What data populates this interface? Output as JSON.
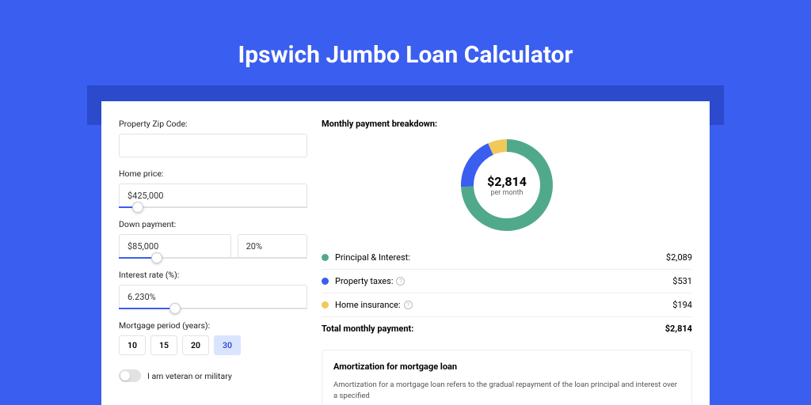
{
  "page": {
    "title": "Ipswich Jumbo Loan Calculator",
    "background_color": "#3a5ef0",
    "darkband_color": "#2b4acc",
    "card_background": "#ffffff"
  },
  "form": {
    "zip": {
      "label": "Property Zip Code:",
      "value": ""
    },
    "home_price": {
      "label": "Home price:",
      "value": "$425,000",
      "slider_pct": 10
    },
    "down_payment": {
      "label": "Down payment:",
      "amount": "$85,000",
      "percent": "20%",
      "slider_pct": 20
    },
    "interest_rate": {
      "label": "Interest rate (%):",
      "value": "6.230%",
      "slider_pct": 30
    },
    "period": {
      "label": "Mortgage period (years):",
      "options": [
        "10",
        "15",
        "20",
        "30"
      ],
      "selected": "30"
    },
    "veteran": {
      "label": "I am veteran or military",
      "checked": false
    }
  },
  "breakdown": {
    "title": "Monthly payment breakdown:",
    "donut": {
      "amount": "$2,814",
      "sub": "per month",
      "segments": [
        {
          "key": "principal",
          "value": 2089,
          "color": "#51a98c"
        },
        {
          "key": "taxes",
          "value": 531,
          "color": "#3a5ef0"
        },
        {
          "key": "insurance",
          "value": 194,
          "color": "#f0c95a"
        }
      ],
      "stroke_width": 16
    },
    "rows": [
      {
        "dot_color": "#51a98c",
        "label": "Principal & Interest:",
        "help": false,
        "value": "$2,089"
      },
      {
        "dot_color": "#3a5ef0",
        "label": "Property taxes:",
        "help": true,
        "value": "$531"
      },
      {
        "dot_color": "#f0c95a",
        "label": "Home insurance:",
        "help": true,
        "value": "$194"
      }
    ],
    "total": {
      "label": "Total monthly payment:",
      "value": "$2,814"
    }
  },
  "amortization": {
    "title": "Amortization for mortgage loan",
    "text": "Amortization for a mortgage loan refers to the gradual repayment of the loan principal and interest over a specified"
  }
}
